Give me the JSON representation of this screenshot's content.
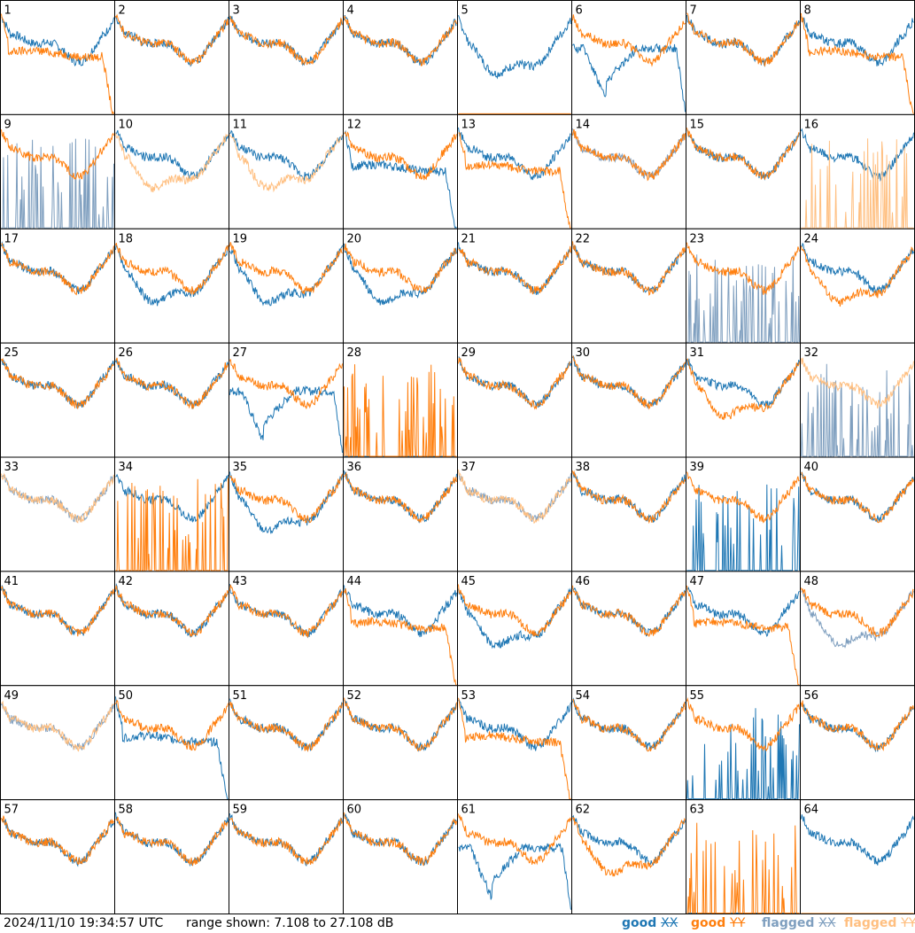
{
  "chart_data": {
    "type": "line",
    "layout": "grid of 8x8 panels",
    "range_db": [
      7.108,
      27.108
    ],
    "series_legend": [
      {
        "name_prefix": "good",
        "name_suffix": "XX",
        "color": "#1f77b4"
      },
      {
        "name_prefix": "good",
        "name_suffix": "YY",
        "color": "#ff7f0e"
      },
      {
        "name_prefix": "flagged",
        "name_suffix": "XX",
        "color": "#7f9fbf"
      },
      {
        "name_prefix": "flagged",
        "name_suffix": "YY",
        "color": "#ffbf80"
      }
    ],
    "panels": [
      {
        "id": "1",
        "xx": "good",
        "yy": "good",
        "xx_kind": "normal",
        "yy_kind": "rolloff"
      },
      {
        "id": "2",
        "xx": "good",
        "yy": "good",
        "xx_kind": "normal",
        "yy_kind": "normal"
      },
      {
        "id": "3",
        "xx": "good",
        "yy": "good",
        "xx_kind": "normal",
        "yy_kind": "normal"
      },
      {
        "id": "4",
        "xx": "good",
        "yy": "good",
        "xx_kind": "normal",
        "yy_kind": "normal"
      },
      {
        "id": "5",
        "xx": "good",
        "yy": "good",
        "xx_kind": "dip",
        "yy_kind": "dead"
      },
      {
        "id": "6",
        "xx": "good",
        "yy": "good",
        "xx_kind": "deep_dip_rolloff",
        "yy_kind": "normal"
      },
      {
        "id": "7",
        "xx": "good",
        "yy": "good",
        "xx_kind": "normal",
        "yy_kind": "normal"
      },
      {
        "id": "8",
        "xx": "good",
        "yy": "good",
        "xx_kind": "normal",
        "yy_kind": "rolloff"
      },
      {
        "id": "9",
        "xx": "flagged",
        "yy": "good",
        "xx_kind": "spiky",
        "yy_kind": "normal"
      },
      {
        "id": "10",
        "xx": "good",
        "yy": "flagged",
        "xx_kind": "normal",
        "yy_kind": "dip"
      },
      {
        "id": "11",
        "xx": "good",
        "yy": "flagged",
        "xx_kind": "normal",
        "yy_kind": "dip"
      },
      {
        "id": "12",
        "xx": "good",
        "yy": "good",
        "xx_kind": "rolloff",
        "yy_kind": "normal"
      },
      {
        "id": "13",
        "xx": "good",
        "yy": "good",
        "xx_kind": "normal",
        "yy_kind": "rolloff"
      },
      {
        "id": "14",
        "xx": "flagged",
        "yy": "good",
        "xx_kind": "normal",
        "yy_kind": "normal"
      },
      {
        "id": "15",
        "xx": "good",
        "yy": "good",
        "xx_kind": "normal",
        "yy_kind": "normal"
      },
      {
        "id": "16",
        "xx": "good",
        "yy": "flagged",
        "xx_kind": "normal",
        "yy_kind": "spiky"
      },
      {
        "id": "17",
        "xx": "good",
        "yy": "good",
        "xx_kind": "normal",
        "yy_kind": "normal"
      },
      {
        "id": "18",
        "xx": "good",
        "yy": "good",
        "xx_kind": "dip",
        "yy_kind": "normal"
      },
      {
        "id": "19",
        "xx": "good",
        "yy": "good",
        "xx_kind": "dip",
        "yy_kind": "normal"
      },
      {
        "id": "20",
        "xx": "good",
        "yy": "good",
        "xx_kind": "dip",
        "yy_kind": "normal"
      },
      {
        "id": "21",
        "xx": "good",
        "yy": "good",
        "xx_kind": "normal",
        "yy_kind": "normal"
      },
      {
        "id": "22",
        "xx": "good",
        "yy": "good",
        "xx_kind": "normal",
        "yy_kind": "normal"
      },
      {
        "id": "23",
        "xx": "flagged",
        "yy": "good",
        "xx_kind": "spiky",
        "yy_kind": "normal"
      },
      {
        "id": "24",
        "xx": "good",
        "yy": "good",
        "xx_kind": "normal",
        "yy_kind": "dip"
      },
      {
        "id": "25",
        "xx": "good",
        "yy": "good",
        "xx_kind": "normal",
        "yy_kind": "normal"
      },
      {
        "id": "26",
        "xx": "good",
        "yy": "good",
        "xx_kind": "normal",
        "yy_kind": "normal"
      },
      {
        "id": "27",
        "xx": "good",
        "yy": "good",
        "xx_kind": "deep_dip_rolloff",
        "yy_kind": "normal"
      },
      {
        "id": "28",
        "xx": "good",
        "yy": "good",
        "xx_kind": "dead",
        "yy_kind": "spiky"
      },
      {
        "id": "29",
        "xx": "good",
        "yy": "good",
        "xx_kind": "normal",
        "yy_kind": "normal"
      },
      {
        "id": "30",
        "xx": "good",
        "yy": "good",
        "xx_kind": "normal",
        "yy_kind": "normal"
      },
      {
        "id": "31",
        "xx": "good",
        "yy": "good",
        "xx_kind": "normal",
        "yy_kind": "dip"
      },
      {
        "id": "32",
        "xx": "flagged",
        "yy": "flagged",
        "xx_kind": "spiky",
        "yy_kind": "normal"
      },
      {
        "id": "33",
        "xx": "flagged",
        "yy": "flagged",
        "xx_kind": "normal",
        "yy_kind": "normal"
      },
      {
        "id": "34",
        "xx": "good",
        "yy": "good",
        "xx_kind": "normal",
        "yy_kind": "spiky"
      },
      {
        "id": "35",
        "xx": "good",
        "yy": "good",
        "xx_kind": "dip",
        "yy_kind": "normal"
      },
      {
        "id": "36",
        "xx": "good",
        "yy": "good",
        "xx_kind": "normal",
        "yy_kind": "normal"
      },
      {
        "id": "37",
        "xx": "flagged",
        "yy": "flagged",
        "xx_kind": "normal",
        "yy_kind": "normal"
      },
      {
        "id": "38",
        "xx": "good",
        "yy": "good",
        "xx_kind": "normal",
        "yy_kind": "normal"
      },
      {
        "id": "39",
        "xx": "good",
        "yy": "good",
        "xx_kind": "spiky",
        "yy_kind": "normal"
      },
      {
        "id": "40",
        "xx": "good",
        "yy": "good",
        "xx_kind": "normal",
        "yy_kind": "normal"
      },
      {
        "id": "41",
        "xx": "good",
        "yy": "good",
        "xx_kind": "normal",
        "yy_kind": "normal"
      },
      {
        "id": "42",
        "xx": "good",
        "yy": "good",
        "xx_kind": "normal",
        "yy_kind": "normal"
      },
      {
        "id": "43",
        "xx": "good",
        "yy": "good",
        "xx_kind": "normal",
        "yy_kind": "normal"
      },
      {
        "id": "44",
        "xx": "good",
        "yy": "good",
        "xx_kind": "normal",
        "yy_kind": "rolloff"
      },
      {
        "id": "45",
        "xx": "good",
        "yy": "good",
        "xx_kind": "dip",
        "yy_kind": "normal"
      },
      {
        "id": "46",
        "xx": "good",
        "yy": "good",
        "xx_kind": "normal",
        "yy_kind": "normal"
      },
      {
        "id": "47",
        "xx": "good",
        "yy": "good",
        "xx_kind": "normal",
        "yy_kind": "rolloff"
      },
      {
        "id": "48",
        "xx": "flagged",
        "yy": "good",
        "xx_kind": "dip",
        "yy_kind": "normal"
      },
      {
        "id": "49",
        "xx": "flagged",
        "yy": "flagged",
        "xx_kind": "normal",
        "yy_kind": "normal"
      },
      {
        "id": "50",
        "xx": "good",
        "yy": "good",
        "xx_kind": "rolloff",
        "yy_kind": "normal"
      },
      {
        "id": "51",
        "xx": "good",
        "yy": "good",
        "xx_kind": "normal",
        "yy_kind": "normal"
      },
      {
        "id": "52",
        "xx": "good",
        "yy": "good",
        "xx_kind": "normal",
        "yy_kind": "normal"
      },
      {
        "id": "53",
        "xx": "good",
        "yy": "good",
        "xx_kind": "normal",
        "yy_kind": "rolloff"
      },
      {
        "id": "54",
        "xx": "good",
        "yy": "good",
        "xx_kind": "normal",
        "yy_kind": "normal"
      },
      {
        "id": "55",
        "xx": "good",
        "yy": "good",
        "xx_kind": "spiky",
        "yy_kind": "normal"
      },
      {
        "id": "56",
        "xx": "good",
        "yy": "good",
        "xx_kind": "normal",
        "yy_kind": "normal"
      },
      {
        "id": "57",
        "xx": "good",
        "yy": "good",
        "xx_kind": "normal",
        "yy_kind": "normal"
      },
      {
        "id": "58",
        "xx": "good",
        "yy": "good",
        "xx_kind": "normal",
        "yy_kind": "normal"
      },
      {
        "id": "59",
        "xx": "good",
        "yy": "good",
        "xx_kind": "normal",
        "yy_kind": "normal"
      },
      {
        "id": "60",
        "xx": "good",
        "yy": "good",
        "xx_kind": "normal",
        "yy_kind": "normal"
      },
      {
        "id": "61",
        "xx": "good",
        "yy": "good",
        "xx_kind": "deep_dip_rolloff",
        "yy_kind": "normal"
      },
      {
        "id": "62",
        "xx": "good",
        "yy": "good",
        "xx_kind": "normal",
        "yy_kind": "dip"
      },
      {
        "id": "63",
        "xx": "good",
        "yy": "good",
        "xx_kind": "dead",
        "yy_kind": "spiky"
      },
      {
        "id": "64",
        "xx": "good",
        "yy": "flagged",
        "xx_kind": "normal",
        "yy_kind": "dead"
      }
    ]
  },
  "footer": {
    "timestamp": "2024/11/10 19:34:57 UTC",
    "range_text": "range shown: 7.108 to 27.108 dB"
  },
  "colors": {
    "good_xx": "#1f77b4",
    "good_yy": "#ff7f0e",
    "flagged_xx": "#7f9fbf",
    "flagged_yy": "#ffbf80"
  }
}
